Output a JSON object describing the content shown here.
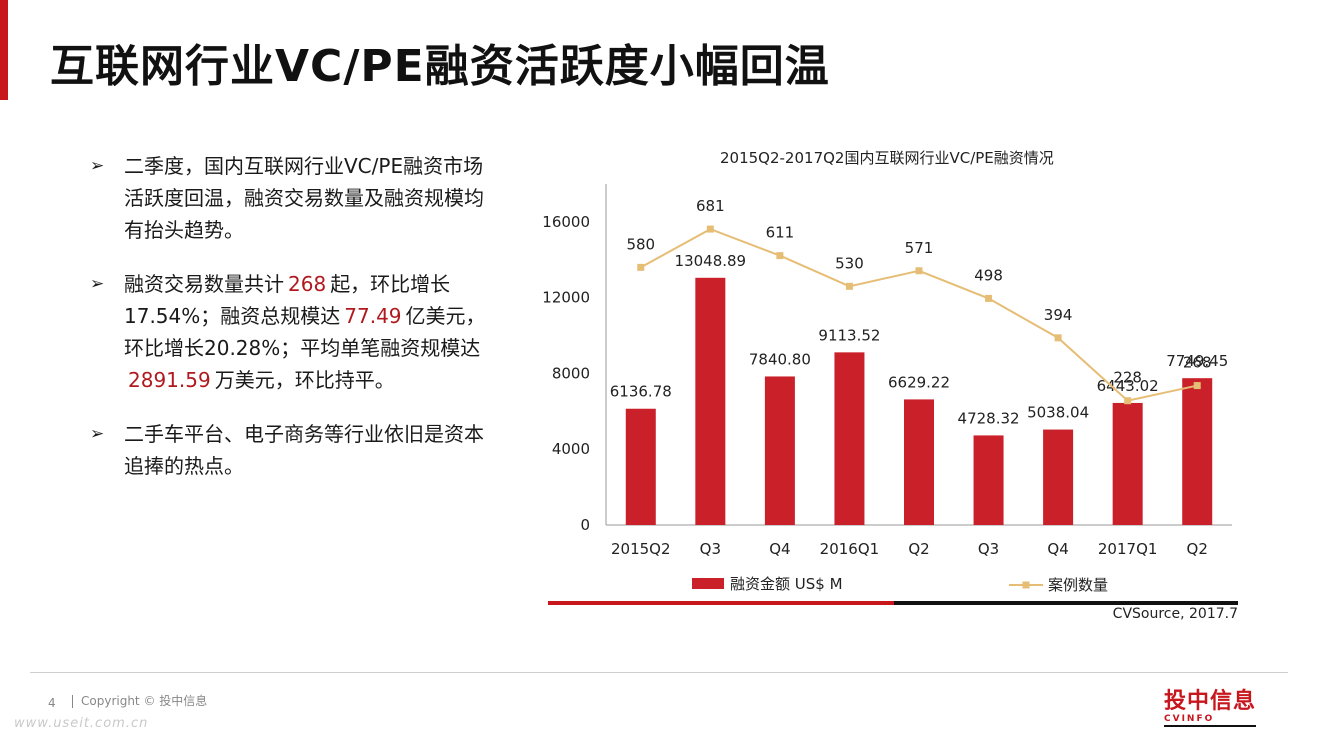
{
  "page": {
    "title": "互联网行业VC/PE融资活跃度小幅回温",
    "page_number": "4",
    "copyright": "Copyright © 投中信息",
    "watermark": "www.useit.com.cn",
    "logo_cn": "投中信息",
    "logo_en": "CVINFO",
    "accent_color": "#c8161d"
  },
  "bullets": {
    "arrow": "➢",
    "b1": "二季度，国内互联网行业VC/PE融资市场活跃度回温，融资交易数量及融资规模均有抬头趋势。",
    "b2_p1": "融资交易数量共计",
    "b2_v1": "268",
    "b2_p2": "起，环比增长17.54%；融资总规模达",
    "b2_v2": "77.49",
    "b2_p3": "亿美元，环比增长20.28%；平均单笔融资规模达",
    "b2_v3": "2891.59",
    "b2_p4": "万美元，环比持平。",
    "b3": "二手车平台、电子商务等行业依旧是资本追捧的热点。"
  },
  "chart_data": {
    "type": "bar",
    "title": "2015Q2-2017Q2国内互联网行业VC/PE融资情况",
    "categories": [
      "2015Q2",
      "Q3",
      "Q4",
      "2016Q1",
      "Q2",
      "Q3",
      "Q4",
      "2017Q1",
      "Q2"
    ],
    "series": [
      {
        "name": "融资金额 US$ M",
        "type": "bar",
        "color": "#c9202a",
        "values": [
          6136.78,
          13048.89,
          7840.8,
          9113.52,
          6629.22,
          4728.32,
          5038.04,
          6443.02,
          7749.45
        ],
        "labels": [
          "6136.78",
          "13048.89",
          "7840.80",
          "9113.52",
          "6629.22",
          "4728.32",
          "5038.04",
          "6443.02",
          "7749.45"
        ]
      },
      {
        "name": "案例数量",
        "type": "line",
        "color": "#e6bd75",
        "values": [
          580,
          681,
          611,
          530,
          571,
          498,
          394,
          228,
          268
        ],
        "labels": [
          "580",
          "681",
          "611",
          "530",
          "571",
          "498",
          "394",
          "228",
          "268"
        ]
      }
    ],
    "y_ticks": [
      "0",
      "4000",
      "8000",
      "12000",
      "16000"
    ],
    "ylim": [
      0,
      18000
    ],
    "secondary_ylim": [
      -100,
      800
    ],
    "legend_position": "bottom",
    "source": "CVSource, 2017.7"
  }
}
